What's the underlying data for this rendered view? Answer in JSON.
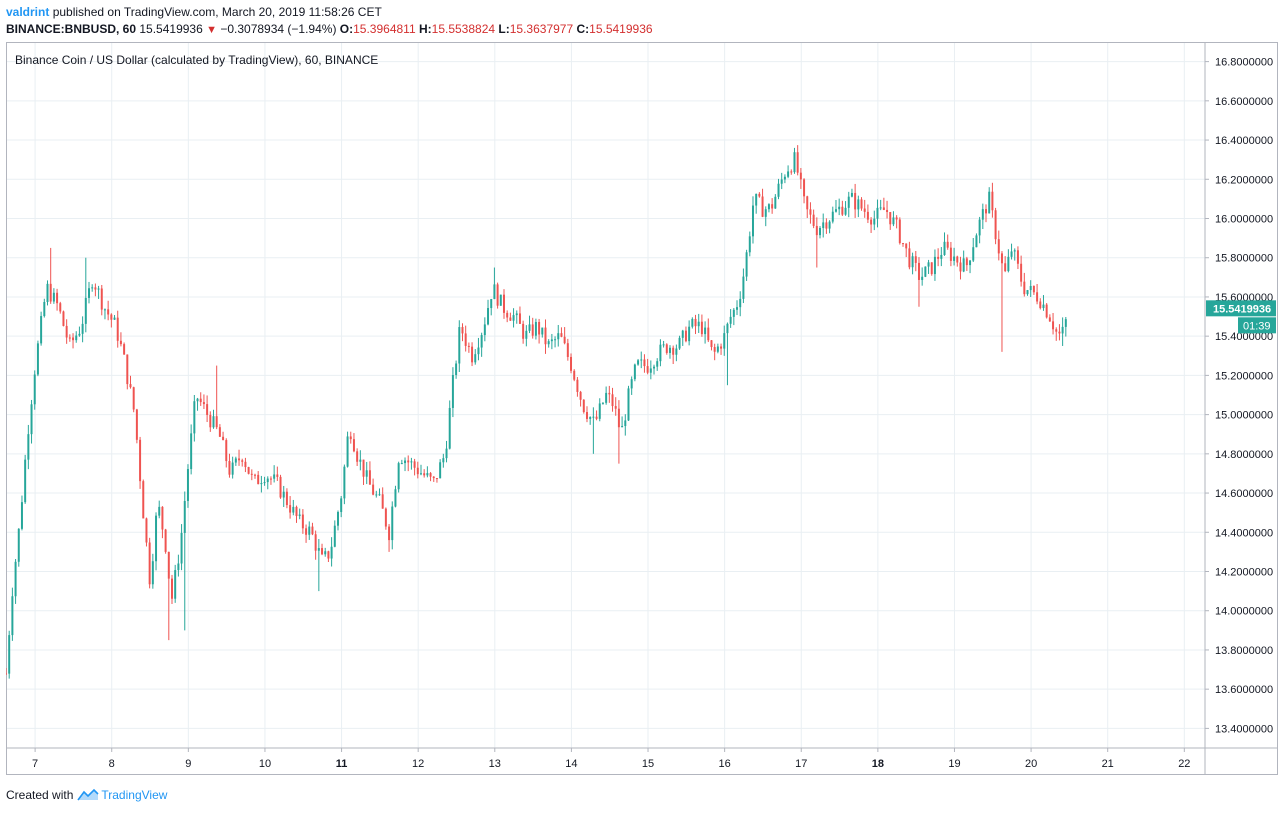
{
  "header": {
    "author": "valdrint",
    "published_text": "published on TradingView.com, March 20, 2019 11:58:26 CET",
    "symbol": "BINANCE:BNBUSD, 60",
    "last_price": "15.5419936",
    "change": "−0.3078934 (−1.94%)",
    "o_label": "O:",
    "o_value": "15.3964811",
    "h_label": "H:",
    "h_value": "15.5538824",
    "l_label": "L:",
    "l_value": "15.3637977",
    "c_label": "C:",
    "c_value": "15.5419936"
  },
  "footer": {
    "created_with": "Created with",
    "brand": "TradingView",
    "logo_icon": "tradingview-logo-icon"
  },
  "colors": {
    "up": "#26a69a",
    "down": "#ef5350",
    "grid": "#e9eff3",
    "axis_text": "#131722",
    "brand": "#2196f3",
    "price_label_bg": "#26a69a"
  },
  "chart_data": {
    "type": "candlestick",
    "title": "Binance Coin / US Dollar (calculated by TradingView), 60, BINANCE",
    "xlabel": "",
    "ylabel": "",
    "x_unit": "day of March 2019",
    "x_tick_labels": [
      "7",
      "8",
      "9",
      "10",
      "11",
      "12",
      "13",
      "14",
      "15",
      "16",
      "17",
      "18",
      "19",
      "20",
      "21",
      "22"
    ],
    "x_bold_ticks": [
      "11",
      "18"
    ],
    "xlim": [
      6.62,
      22.27
    ],
    "y_tick_labels": [
      "13.4000000",
      "13.6000000",
      "13.8000000",
      "14.0000000",
      "14.2000000",
      "14.4000000",
      "14.6000000",
      "14.8000000",
      "15.0000000",
      "15.2000000",
      "15.4000000",
      "15.6000000",
      "15.8000000",
      "16.0000000",
      "16.2000000",
      "16.4000000",
      "16.6000000",
      "16.8000000"
    ],
    "ylim": [
      13.3,
      16.9
    ],
    "grid": true,
    "axis_position": "right",
    "current_price_label": "15.5419936",
    "countdown_label": "01:39",
    "bar_interval_hours": 1,
    "series": [
      {
        "path": [
          [
            6.62,
            13.68
          ],
          [
            6.7,
            14.1
          ],
          [
            6.8,
            14.45
          ],
          [
            6.9,
            14.9
          ],
          [
            7.0,
            15.25
          ],
          [
            7.15,
            15.65
          ],
          [
            7.3,
            15.55
          ],
          [
            7.45,
            15.35
          ],
          [
            7.6,
            15.45
          ],
          [
            7.75,
            15.7
          ],
          [
            7.9,
            15.55
          ],
          [
            8.05,
            15.45
          ],
          [
            8.15,
            15.3
          ],
          [
            8.3,
            15.0
          ],
          [
            8.4,
            14.55
          ],
          [
            8.5,
            14.15
          ],
          [
            8.6,
            14.55
          ],
          [
            8.7,
            14.35
          ],
          [
            8.78,
            14.05
          ],
          [
            8.9,
            14.35
          ],
          [
            9.0,
            14.75
          ],
          [
            9.1,
            15.1
          ],
          [
            9.25,
            15.0
          ],
          [
            9.4,
            14.9
          ],
          [
            9.55,
            14.7
          ],
          [
            9.7,
            14.8
          ],
          [
            9.85,
            14.65
          ],
          [
            10.0,
            14.7
          ],
          [
            10.15,
            14.65
          ],
          [
            10.3,
            14.55
          ],
          [
            10.45,
            14.45
          ],
          [
            10.6,
            14.4
          ],
          [
            10.75,
            14.25
          ],
          [
            10.85,
            14.3
          ],
          [
            11.0,
            14.6
          ],
          [
            11.1,
            14.95
          ],
          [
            11.2,
            14.8
          ],
          [
            11.35,
            14.65
          ],
          [
            11.5,
            14.55
          ],
          [
            11.62,
            14.4
          ],
          [
            11.75,
            14.8
          ],
          [
            11.9,
            14.75
          ],
          [
            12.05,
            14.7
          ],
          [
            12.2,
            14.65
          ],
          [
            12.35,
            14.8
          ],
          [
            12.45,
            15.15
          ],
          [
            12.55,
            15.45
          ],
          [
            12.7,
            15.3
          ],
          [
            12.85,
            15.45
          ],
          [
            12.97,
            15.65
          ],
          [
            13.1,
            15.55
          ],
          [
            13.25,
            15.5
          ],
          [
            13.4,
            15.4
          ],
          [
            13.55,
            15.45
          ],
          [
            13.7,
            15.35
          ],
          [
            13.85,
            15.4
          ],
          [
            14.0,
            15.25
          ],
          [
            14.15,
            15.05
          ],
          [
            14.3,
            14.95
          ],
          [
            14.45,
            15.1
          ],
          [
            14.55,
            15.05
          ],
          [
            14.65,
            14.9
          ],
          [
            14.75,
            15.1
          ],
          [
            14.85,
            15.25
          ],
          [
            15.0,
            15.25
          ],
          [
            15.1,
            15.3
          ],
          [
            15.25,
            15.35
          ],
          [
            15.4,
            15.35
          ],
          [
            15.55,
            15.45
          ],
          [
            15.7,
            15.45
          ],
          [
            15.85,
            15.3
          ],
          [
            16.0,
            15.4
          ],
          [
            16.08,
            15.5
          ],
          [
            16.15,
            15.55
          ],
          [
            16.22,
            15.65
          ],
          [
            16.3,
            15.85
          ],
          [
            16.38,
            16.1
          ],
          [
            16.5,
            16.05
          ],
          [
            16.6,
            16.05
          ],
          [
            16.7,
            16.15
          ],
          [
            16.8,
            16.25
          ],
          [
            16.92,
            16.3
          ],
          [
            17.05,
            16.05
          ],
          [
            17.2,
            15.95
          ],
          [
            17.35,
            16.0
          ],
          [
            17.5,
            16.05
          ],
          [
            17.65,
            16.1
          ],
          [
            17.8,
            16.05
          ],
          [
            17.95,
            16.0
          ],
          [
            18.1,
            16.05
          ],
          [
            18.25,
            15.95
          ],
          [
            18.4,
            15.8
          ],
          [
            18.55,
            15.7
          ],
          [
            18.7,
            15.75
          ],
          [
            18.85,
            15.85
          ],
          [
            19.0,
            15.8
          ],
          [
            19.15,
            15.75
          ],
          [
            19.3,
            15.95
          ],
          [
            19.45,
            16.1
          ],
          [
            19.55,
            15.9
          ],
          [
            19.65,
            15.7
          ],
          [
            19.75,
            15.85
          ],
          [
            19.9,
            15.65
          ],
          [
            20.1,
            15.6
          ],
          [
            20.25,
            15.5
          ],
          [
            20.35,
            15.4
          ],
          [
            20.42,
            15.42
          ],
          [
            20.48,
            15.54
          ]
        ],
        "big_wicks": [
          [
            7.2,
            15.85
          ],
          [
            7.65,
            15.8
          ],
          [
            8.75,
            13.85
          ],
          [
            8.95,
            13.9
          ],
          [
            9.35,
            15.25
          ],
          [
            10.7,
            14.1
          ],
          [
            11.6,
            14.3
          ],
          [
            12.98,
            15.75
          ],
          [
            14.3,
            14.8
          ],
          [
            14.6,
            14.75
          ],
          [
            16.02,
            15.15
          ],
          [
            16.95,
            16.33
          ],
          [
            17.2,
            15.75
          ],
          [
            18.55,
            15.55
          ],
          [
            19.6,
            15.32
          ],
          [
            20.4,
            15.35
          ]
        ]
      }
    ]
  }
}
